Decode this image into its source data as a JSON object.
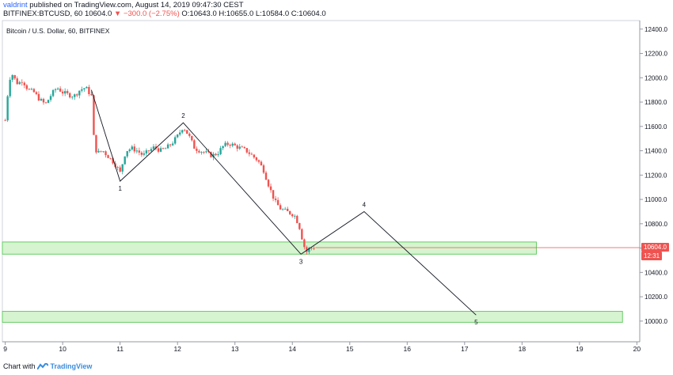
{
  "header": {
    "user": "valdrint",
    "published_text": " published on TradingView.com, August 14, 2019 09:47:30 CEST",
    "symbol_line": "BITFINEX:BTCUSD, 60 ",
    "last": "10604.0",
    "change": "▼ −300.0 (−2.75%)",
    "ohlc": " O:10643.0 H:10655.0 L:10584.0 C:10604.0"
  },
  "chart_title": "Bitcoin / U.S. Dollar, 60, BITFINEX",
  "price_label": "10604.0",
  "countdown_label": "12:31",
  "footer": {
    "prefix": "Chart with ",
    "brand": "TradingView"
  },
  "colors": {
    "up": "#26a69a",
    "down": "#ef5350",
    "zone_fill": "#c8f0c0",
    "zone_stroke": "#66cc66"
  },
  "chart_data": {
    "type": "candlestick",
    "title": "Bitcoin / U.S. Dollar, 60, BITFINEX",
    "y_ticks": [
      10000,
      10200,
      10400,
      10600,
      10800,
      11000,
      11200,
      11400,
      11600,
      11800,
      12000,
      12200,
      12400
    ],
    "y_tick_labels": [
      "10000.0",
      "10200.0",
      "10400.0",
      "10600.0",
      "10800.0",
      "11000.0",
      "11200.0",
      "11400.0",
      "11600.0",
      "11800.0",
      "12000.0",
      "12200.0",
      "12400.0"
    ],
    "x_ticks": [
      9,
      10,
      11,
      12,
      13,
      14,
      15,
      16,
      17,
      18,
      19,
      20
    ],
    "ylim": [
      9830,
      12470
    ],
    "xlim": [
      8.95,
      20.05
    ],
    "close_path": [
      [
        9.0,
        11650
      ],
      [
        9.05,
        11900
      ],
      [
        9.1,
        12050
      ],
      [
        9.15,
        12000
      ],
      [
        9.22,
        11950
      ],
      [
        9.3,
        11980
      ],
      [
        9.4,
        11900
      ],
      [
        9.5,
        11880
      ],
      [
        9.6,
        11820
      ],
      [
        9.7,
        11780
      ],
      [
        9.8,
        11860
      ],
      [
        9.9,
        11920
      ],
      [
        10.0,
        11880
      ],
      [
        10.1,
        11860
      ],
      [
        10.2,
        11850
      ],
      [
        10.3,
        11900
      ],
      [
        10.4,
        11920
      ],
      [
        10.5,
        11850
      ],
      [
        10.55,
        11450
      ],
      [
        10.6,
        11380
      ],
      [
        10.7,
        11400
      ],
      [
        10.8,
        11350
      ],
      [
        10.9,
        11300
      ],
      [
        11.0,
        11220
      ],
      [
        11.1,
        11400
      ],
      [
        11.2,
        11420
      ],
      [
        11.3,
        11400
      ],
      [
        11.4,
        11360
      ],
      [
        11.5,
        11400
      ],
      [
        11.6,
        11430
      ],
      [
        11.7,
        11400
      ],
      [
        11.8,
        11420
      ],
      [
        11.9,
        11460
      ],
      [
        12.0,
        11520
      ],
      [
        12.1,
        11600
      ],
      [
        12.2,
        11520
      ],
      [
        12.3,
        11420
      ],
      [
        12.4,
        11400
      ],
      [
        12.5,
        11380
      ],
      [
        12.6,
        11360
      ],
      [
        12.7,
        11380
      ],
      [
        12.8,
        11440
      ],
      [
        12.9,
        11460
      ],
      [
        13.0,
        11440
      ],
      [
        13.1,
        11420
      ],
      [
        13.2,
        11400
      ],
      [
        13.3,
        11360
      ],
      [
        13.4,
        11320
      ],
      [
        13.5,
        11240
      ],
      [
        13.6,
        11100
      ],
      [
        13.7,
        10980
      ],
      [
        13.8,
        10920
      ],
      [
        13.9,
        10900
      ],
      [
        14.0,
        10880
      ],
      [
        14.05,
        10860
      ],
      [
        14.12,
        10780
      ],
      [
        14.2,
        10620
      ],
      [
        14.25,
        10570
      ],
      [
        14.3,
        10600
      ],
      [
        14.38,
        10604
      ]
    ],
    "current_price": 10604.0,
    "zones": [
      {
        "y1": 10550,
        "y2": 10650,
        "x1": 8.95,
        "x2": 18.25
      },
      {
        "y1": 9990,
        "y2": 10080,
        "x1": 8.95,
        "x2": 19.75
      }
    ],
    "wave": [
      {
        "label": "1",
        "x": 11.0,
        "y": 11150
      },
      {
        "label": "2",
        "x": 12.1,
        "y": 11630
      },
      {
        "label": "3",
        "x": 14.15,
        "y": 10550
      },
      {
        "label": "4",
        "x": 15.25,
        "y": 10900
      },
      {
        "label": "5",
        "x": 17.2,
        "y": 10050
      }
    ]
  }
}
